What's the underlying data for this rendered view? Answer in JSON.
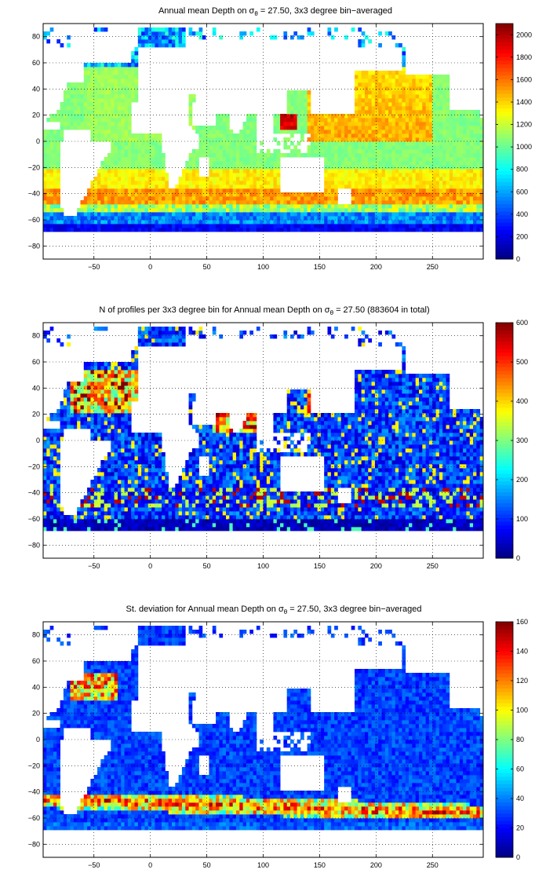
{
  "figure_title": "Three stacked global maps with colorbars",
  "chart_data": [
    {
      "type": "heatmap",
      "title_text": "Annual mean Depth on σθ = 27.50, 3x3 degree bin−averaged",
      "title_parts": {
        "before": "Annual mean Depth on ",
        "sigma": "σ",
        "sub": "θ",
        "after": " = 27.50, 3x3 degree bin−averaged"
      },
      "xlim": [
        -95,
        295
      ],
      "ylim": [
        -90,
        90
      ],
      "xticks": [
        -50,
        0,
        50,
        100,
        150,
        200,
        250
      ],
      "yticks": [
        -80,
        -60,
        -40,
        -20,
        0,
        20,
        40,
        60,
        80
      ],
      "grid": true,
      "colorbar": {
        "min": 0,
        "max": 2100,
        "ticks": [
          0,
          200,
          400,
          600,
          800,
          1000,
          1200,
          1400,
          1600,
          1800,
          2000
        ]
      },
      "colormap": "jet",
      "field": "depth"
    },
    {
      "type": "heatmap",
      "title_text": "N of profiles per 3x3 degree bin for Annual mean Depth on σθ = 27.50 (883604 in total)",
      "title_parts": {
        "before": "N of profiles per 3x3 degree bin for Annual mean Depth on ",
        "sigma": "σ",
        "sub": "θ",
        "after": " = 27.50 (883604 in total)"
      },
      "xlim": [
        -95,
        295
      ],
      "ylim": [
        -90,
        90
      ],
      "xticks": [
        -50,
        0,
        50,
        100,
        150,
        200,
        250
      ],
      "yticks": [
        -80,
        -60,
        -40,
        -20,
        0,
        20,
        40,
        60,
        80
      ],
      "grid": true,
      "colorbar": {
        "min": 0,
        "max": 600,
        "ticks": [
          0,
          100,
          200,
          300,
          400,
          500,
          600
        ]
      },
      "colormap": "jet",
      "field": "count"
    },
    {
      "type": "heatmap",
      "title_text": "St. deviation for Annual mean Depth on σθ = 27.50, 3x3 degree bin−averaged",
      "title_parts": {
        "before": "St. deviation for Annual mean Depth on ",
        "sigma": "σ",
        "sub": "θ",
        "after": " = 27.50, 3x3 degree bin−averaged"
      },
      "xlim": [
        -95,
        295
      ],
      "ylim": [
        -90,
        90
      ],
      "xticks": [
        -50,
        0,
        50,
        100,
        150,
        200,
        250
      ],
      "yticks": [
        -80,
        -60,
        -40,
        -20,
        0,
        20,
        40,
        60,
        80
      ],
      "grid": true,
      "colorbar": {
        "min": 0,
        "max": 160,
        "ticks": [
          0,
          20,
          40,
          60,
          80,
          100,
          120,
          140,
          160
        ]
      },
      "colormap": "jet",
      "field": "std"
    }
  ]
}
